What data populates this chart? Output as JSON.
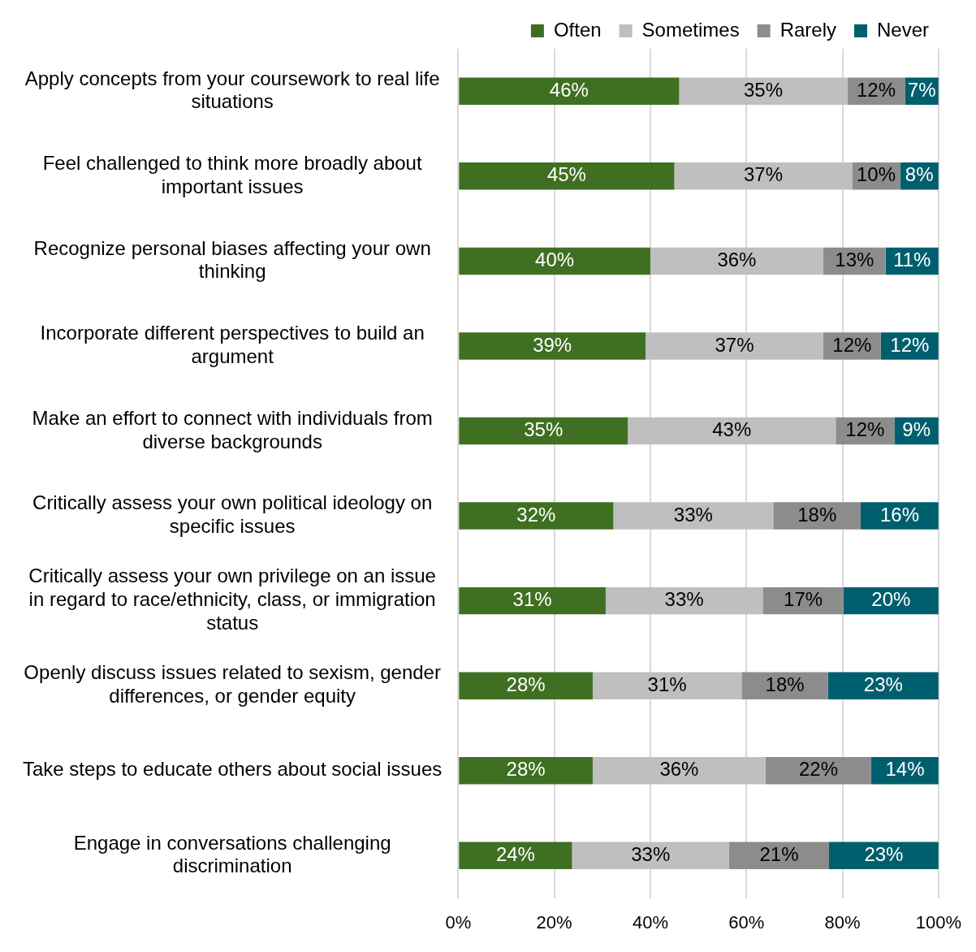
{
  "chart_data": {
    "type": "bar",
    "orientation": "horizontal",
    "stacked": true,
    "legend": "top right",
    "grid": "x",
    "categories": [
      "Apply concepts from your coursework to real life situations",
      "Feel challenged to think more broadly about important issues",
      "Recognize personal biases affecting your own thinking",
      "Incorporate different perspectives to build an argument",
      "Make an effort to connect with individuals from diverse backgrounds",
      "Critically assess your own political ideology on specific issues",
      "Critically assess your own privilege on an issue in regard to race/ethnicity, class, or immigration status",
      "Openly discuss issues related to sexism, gender differences, or gender equity",
      "Take steps to educate others about social issues",
      "Engage in conversations challenging discrimination"
    ],
    "xlim": [
      0,
      100
    ],
    "xticks": [
      {
        "value": 0,
        "label": "0%"
      },
      {
        "value": 20,
        "label": "20%"
      },
      {
        "value": 40,
        "label": "40%"
      },
      {
        "value": 60,
        "label": "60%"
      },
      {
        "value": 80,
        "label": "80%"
      },
      {
        "value": 100,
        "label": "100%"
      }
    ],
    "series": [
      {
        "name": "Often",
        "color": "#3f7022",
        "values": [
          46,
          45,
          40,
          39,
          35.3,
          32.3,
          30.7,
          28,
          28,
          23.7
        ],
        "value_labels": [
          "46%",
          "45%",
          "40%",
          "39%",
          "35%",
          "32%",
          "31%",
          "28%",
          "28%",
          "24%"
        ]
      },
      {
        "name": "Sometimes",
        "color": "#bfbfbf",
        "values": [
          35,
          37,
          36,
          37,
          43.3,
          33.3,
          32.7,
          31,
          36,
          32.7
        ],
        "value_labels": [
          "35%",
          "37%",
          "36%",
          "37%",
          "43%",
          "33%",
          "33%",
          "31%",
          "36%",
          "33%"
        ]
      },
      {
        "name": "Rarely",
        "color": "#8c8c8c",
        "values": [
          12,
          10,
          13,
          12,
          12.2,
          18.2,
          16.8,
          18,
          22,
          20.8
        ],
        "value_labels": [
          "12%",
          "10%",
          "13%",
          "12%",
          "12%",
          "18%",
          "17%",
          "18%",
          "22%",
          "21%"
        ]
      },
      {
        "name": "Never",
        "color": "#005f6e",
        "values": [
          7,
          8,
          11,
          12,
          9.2,
          16.2,
          19.8,
          23,
          14,
          22.8
        ],
        "value_labels": [
          "7%",
          "8%",
          "11%",
          "12%",
          "9%",
          "16%",
          "20%",
          "23%",
          "14%",
          "23%"
        ]
      }
    ]
  }
}
